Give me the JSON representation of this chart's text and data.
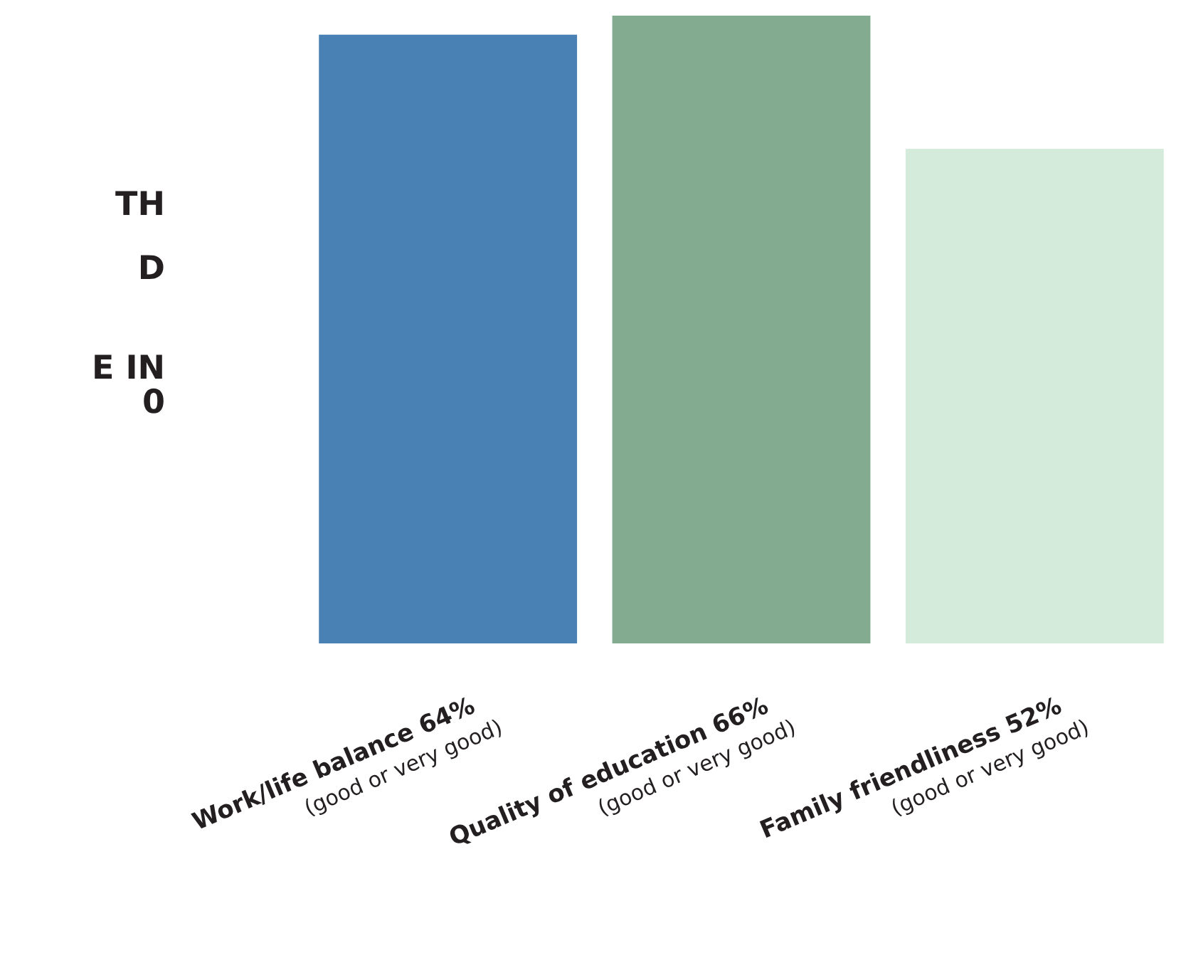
{
  "chart_data": {
    "type": "bar",
    "categories": [
      "Work/life balance\n(good or very good)",
      "Quality of education\n(good or very good)",
      "Family friendliness\n(good or very good)"
    ],
    "values": [
      64,
      66,
      52
    ],
    "value_labels": [
      "64%",
      "66%",
      "52%"
    ],
    "colors": [
      "#4a81b4",
      "#82ab8f",
      "#d4eadb"
    ],
    "annotations": [
      "TH",
      "D",
      "E IN",
      "0"
    ]
  }
}
